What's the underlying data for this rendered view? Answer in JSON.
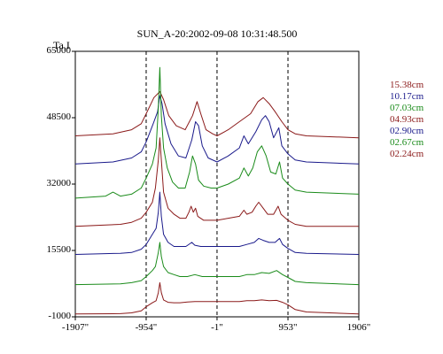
{
  "chart_data": {
    "type": "line",
    "title": "SUN_A-20:2002-09-08 10:31:48.500",
    "ylabel": "Ta,I",
    "xlabel": "",
    "xlim": [
      -1907,
      1906
    ],
    "ylim": [
      -1000,
      65000
    ],
    "y_ticks": [
      {
        "value": 65000,
        "label": "65000"
      },
      {
        "value": 48500,
        "label": "48500"
      },
      {
        "value": 32000,
        "label": "32000"
      },
      {
        "value": 15500,
        "label": "15500"
      },
      {
        "value": -1000,
        "label": "-1000"
      }
    ],
    "x_ticks": [
      {
        "value": -1907,
        "label": "-1907\""
      },
      {
        "value": -954,
        "label": "-954\""
      },
      {
        "value": -1,
        "label": "-1\""
      },
      {
        "value": 953,
        "label": "953\""
      },
      {
        "value": 1906,
        "label": "1906\""
      }
    ],
    "vertical_dashed_lines": [
      -954,
      -1,
      953
    ],
    "legend_position": "right",
    "series": [
      {
        "name": "15.38cm",
        "color": "#8b1a1a",
        "points": [
          [
            -1907,
            44000
          ],
          [
            -1400,
            44500
          ],
          [
            -1150,
            45500
          ],
          [
            -1020,
            47000
          ],
          [
            -954,
            49500
          ],
          [
            -850,
            53500
          ],
          [
            -770,
            55000
          ],
          [
            -720,
            53000
          ],
          [
            -650,
            49000
          ],
          [
            -550,
            46500
          ],
          [
            -430,
            45500
          ],
          [
            -330,
            49000
          ],
          [
            -270,
            52500
          ],
          [
            -220,
            49500
          ],
          [
            -150,
            45500
          ],
          [
            -60,
            44500
          ],
          [
            -1,
            44000
          ],
          [
            150,
            45500
          ],
          [
            300,
            47500
          ],
          [
            450,
            49500
          ],
          [
            550,
            52500
          ],
          [
            620,
            53500
          ],
          [
            700,
            52000
          ],
          [
            780,
            50000
          ],
          [
            870,
            47500
          ],
          [
            953,
            45500
          ],
          [
            1050,
            44500
          ],
          [
            1200,
            44000
          ],
          [
            1906,
            43500
          ]
        ]
      },
      {
        "name": "10.17cm",
        "color": "#1a1a8b",
        "points": [
          [
            -1907,
            37000
          ],
          [
            -1400,
            37500
          ],
          [
            -1150,
            38500
          ],
          [
            -1020,
            40000
          ],
          [
            -954,
            42500
          ],
          [
            -860,
            47000
          ],
          [
            -800,
            50000
          ],
          [
            -770,
            54000
          ],
          [
            -740,
            52000
          ],
          [
            -700,
            47000
          ],
          [
            -620,
            42000
          ],
          [
            -520,
            39000
          ],
          [
            -420,
            38500
          ],
          [
            -340,
            43000
          ],
          [
            -290,
            47500
          ],
          [
            -250,
            46500
          ],
          [
            -200,
            41500
          ],
          [
            -120,
            38500
          ],
          [
            -1,
            37500
          ],
          [
            150,
            39000
          ],
          [
            300,
            41000
          ],
          [
            360,
            44000
          ],
          [
            420,
            42000
          ],
          [
            520,
            45000
          ],
          [
            600,
            48000
          ],
          [
            650,
            49000
          ],
          [
            700,
            47500
          ],
          [
            760,
            43500
          ],
          [
            830,
            46000
          ],
          [
            870,
            41500
          ],
          [
            953,
            39500
          ],
          [
            1050,
            38000
          ],
          [
            1200,
            37500
          ],
          [
            1906,
            37000
          ]
        ]
      },
      {
        "name": "07.03cm",
        "color": "#1a8b1a",
        "points": [
          [
            -1907,
            28500
          ],
          [
            -1500,
            29000
          ],
          [
            -1400,
            30000
          ],
          [
            -1300,
            29000
          ],
          [
            -1150,
            29500
          ],
          [
            -1020,
            31000
          ],
          [
            -954,
            33500
          ],
          [
            -870,
            37000
          ],
          [
            -820,
            41000
          ],
          [
            -790,
            51000
          ],
          [
            -770,
            61000
          ],
          [
            -750,
            49000
          ],
          [
            -720,
            41000
          ],
          [
            -670,
            36000
          ],
          [
            -600,
            32500
          ],
          [
            -520,
            31000
          ],
          [
            -430,
            31000
          ],
          [
            -370,
            35000
          ],
          [
            -330,
            39000
          ],
          [
            -290,
            37000
          ],
          [
            -250,
            33000
          ],
          [
            -180,
            31500
          ],
          [
            -80,
            31000
          ],
          [
            -1,
            31000
          ],
          [
            150,
            32000
          ],
          [
            300,
            33500
          ],
          [
            360,
            36000
          ],
          [
            420,
            34000
          ],
          [
            480,
            36000
          ],
          [
            540,
            40000
          ],
          [
            600,
            41500
          ],
          [
            660,
            39000
          ],
          [
            720,
            35000
          ],
          [
            790,
            34500
          ],
          [
            840,
            37500
          ],
          [
            880,
            33500
          ],
          [
            953,
            32000
          ],
          [
            1050,
            30500
          ],
          [
            1200,
            30000
          ],
          [
            1906,
            29500
          ]
        ]
      },
      {
        "name": "04.93cm",
        "color": "#8b1a1a",
        "points": [
          [
            -1907,
            21500
          ],
          [
            -1300,
            22000
          ],
          [
            -1150,
            22500
          ],
          [
            -1020,
            23500
          ],
          [
            -954,
            25000
          ],
          [
            -870,
            27500
          ],
          [
            -830,
            31000
          ],
          [
            -790,
            38000
          ],
          [
            -770,
            43500
          ],
          [
            -750,
            38000
          ],
          [
            -720,
            30000
          ],
          [
            -660,
            26000
          ],
          [
            -580,
            24500
          ],
          [
            -500,
            23500
          ],
          [
            -420,
            23500
          ],
          [
            -380,
            25000
          ],
          [
            -350,
            26500
          ],
          [
            -320,
            25000
          ],
          [
            -290,
            26000
          ],
          [
            -260,
            24000
          ],
          [
            -180,
            23000
          ],
          [
            -1,
            23000
          ],
          [
            150,
            23500
          ],
          [
            300,
            24000
          ],
          [
            360,
            25500
          ],
          [
            400,
            24500
          ],
          [
            470,
            25000
          ],
          [
            520,
            26500
          ],
          [
            560,
            27500
          ],
          [
            620,
            26000
          ],
          [
            680,
            24500
          ],
          [
            760,
            24500
          ],
          [
            820,
            26500
          ],
          [
            860,
            24500
          ],
          [
            953,
            23000
          ],
          [
            1050,
            22000
          ],
          [
            1200,
            21500
          ],
          [
            1906,
            21500
          ]
        ]
      },
      {
        "name": "02.90cm",
        "color": "#1a1a8b",
        "points": [
          [
            -1907,
            14500
          ],
          [
            -1300,
            14800
          ],
          [
            -1150,
            15000
          ],
          [
            -1020,
            15800
          ],
          [
            -954,
            17000
          ],
          [
            -870,
            19500
          ],
          [
            -820,
            21000
          ],
          [
            -790,
            25000
          ],
          [
            -770,
            30000
          ],
          [
            -750,
            24000
          ],
          [
            -720,
            19500
          ],
          [
            -660,
            17500
          ],
          [
            -580,
            16500
          ],
          [
            -500,
            16500
          ],
          [
            -420,
            16500
          ],
          [
            -340,
            17500
          ],
          [
            -300,
            16800
          ],
          [
            -220,
            16500
          ],
          [
            -120,
            16500
          ],
          [
            -1,
            16500
          ],
          [
            150,
            16500
          ],
          [
            300,
            16500
          ],
          [
            400,
            17000
          ],
          [
            500,
            17500
          ],
          [
            560,
            18500
          ],
          [
            620,
            18000
          ],
          [
            700,
            17500
          ],
          [
            780,
            17500
          ],
          [
            840,
            18500
          ],
          [
            880,
            17000
          ],
          [
            953,
            16000
          ],
          [
            1050,
            15000
          ],
          [
            1200,
            14800
          ],
          [
            1906,
            14500
          ]
        ]
      },
      {
        "name": "02.67cm",
        "color": "#1a8b1a",
        "points": [
          [
            -1907,
            7000
          ],
          [
            -1300,
            7200
          ],
          [
            -1150,
            7500
          ],
          [
            -1020,
            8000
          ],
          [
            -954,
            9000
          ],
          [
            -870,
            10500
          ],
          [
            -830,
            11500
          ],
          [
            -790,
            15000
          ],
          [
            -770,
            17500
          ],
          [
            -750,
            14000
          ],
          [
            -720,
            11500
          ],
          [
            -660,
            10000
          ],
          [
            -580,
            9500
          ],
          [
            -500,
            9000
          ],
          [
            -400,
            9000
          ],
          [
            -300,
            9500
          ],
          [
            -200,
            9000
          ],
          [
            -1,
            9000
          ],
          [
            150,
            9000
          ],
          [
            300,
            9000
          ],
          [
            400,
            9500
          ],
          [
            500,
            9500
          ],
          [
            600,
            10000
          ],
          [
            700,
            9800
          ],
          [
            800,
            10500
          ],
          [
            880,
            9500
          ],
          [
            953,
            8800
          ],
          [
            1050,
            7800
          ],
          [
            1200,
            7500
          ],
          [
            1906,
            7000
          ]
        ]
      },
      {
        "name": "02.24cm",
        "color": "#8b1a1a",
        "points": [
          [
            -1907,
            -300
          ],
          [
            -1300,
            -200
          ],
          [
            -1150,
            0
          ],
          [
            -1020,
            500
          ],
          [
            -954,
            1500
          ],
          [
            -870,
            2500
          ],
          [
            -820,
            3000
          ],
          [
            -790,
            5000
          ],
          [
            -770,
            7500
          ],
          [
            -750,
            5000
          ],
          [
            -720,
            3200
          ],
          [
            -660,
            2600
          ],
          [
            -580,
            2500
          ],
          [
            -500,
            2500
          ],
          [
            -400,
            2700
          ],
          [
            -300,
            2800
          ],
          [
            -200,
            2800
          ],
          [
            -1,
            2800
          ],
          [
            150,
            2800
          ],
          [
            300,
            2800
          ],
          [
            400,
            3000
          ],
          [
            500,
            3000
          ],
          [
            600,
            3200
          ],
          [
            700,
            3000
          ],
          [
            800,
            3100
          ],
          [
            880,
            2600
          ],
          [
            953,
            2000
          ],
          [
            1050,
            800
          ],
          [
            1200,
            200
          ],
          [
            1906,
            -300
          ]
        ]
      }
    ]
  }
}
